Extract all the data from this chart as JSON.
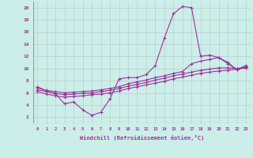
{
  "xlabel": "Windchill (Refroidissement éolien,°C)",
  "bg_color": "#cceee8",
  "line_color": "#993399",
  "grid_color": "#aaddcc",
  "xlim": [
    -0.5,
    23.5
  ],
  "ylim": [
    1,
    21
  ],
  "xticks": [
    0,
    1,
    2,
    3,
    4,
    5,
    6,
    7,
    8,
    9,
    10,
    11,
    12,
    13,
    14,
    15,
    16,
    17,
    18,
    19,
    20,
    21,
    22,
    23
  ],
  "yticks": [
    2,
    4,
    6,
    8,
    10,
    12,
    14,
    16,
    18,
    20
  ],
  "series1_x": [
    0,
    1,
    2,
    3,
    4,
    5,
    6,
    7,
    8,
    9,
    10,
    11,
    12,
    13,
    14,
    15,
    16,
    17,
    18,
    19,
    20,
    21,
    22,
    23
  ],
  "series1_y": [
    7.0,
    6.3,
    5.8,
    4.2,
    4.5,
    3.2,
    2.3,
    2.8,
    5.0,
    8.3,
    8.5,
    8.5,
    9.0,
    10.5,
    15.0,
    19.0,
    20.2,
    20.0,
    12.0,
    12.2,
    11.8,
    11.0,
    9.8,
    10.5
  ],
  "series2_x": [
    0,
    1,
    2,
    3,
    4,
    5,
    6,
    7,
    8,
    9,
    10,
    11,
    12,
    13,
    14,
    15,
    16,
    17,
    18,
    19,
    20,
    21,
    22,
    23
  ],
  "series2_y": [
    6.8,
    6.4,
    6.2,
    6.0,
    6.1,
    6.2,
    6.3,
    6.5,
    6.7,
    7.0,
    7.5,
    7.8,
    8.1,
    8.5,
    8.8,
    9.2,
    9.5,
    10.8,
    11.2,
    11.5,
    11.8,
    10.8,
    9.8,
    10.3
  ],
  "series3_x": [
    0,
    1,
    2,
    3,
    4,
    5,
    6,
    7,
    8,
    9,
    10,
    11,
    12,
    13,
    14,
    15,
    16,
    17,
    18,
    19,
    20,
    21,
    22,
    23
  ],
  "series3_y": [
    6.5,
    6.2,
    5.9,
    5.7,
    5.8,
    5.9,
    6.0,
    6.2,
    6.4,
    6.7,
    7.1,
    7.4,
    7.7,
    8.1,
    8.4,
    8.8,
    9.1,
    9.4,
    9.7,
    9.9,
    10.1,
    10.1,
    10.0,
    10.2
  ],
  "series4_x": [
    0,
    1,
    2,
    3,
    4,
    5,
    6,
    7,
    8,
    9,
    10,
    11,
    12,
    13,
    14,
    15,
    16,
    17,
    18,
    19,
    20,
    21,
    22,
    23
  ],
  "series4_y": [
    6.2,
    5.8,
    5.5,
    5.3,
    5.4,
    5.5,
    5.7,
    5.8,
    6.0,
    6.3,
    6.7,
    7.0,
    7.3,
    7.6,
    7.9,
    8.3,
    8.6,
    8.9,
    9.2,
    9.4,
    9.6,
    9.7,
    9.9,
    10.1
  ]
}
